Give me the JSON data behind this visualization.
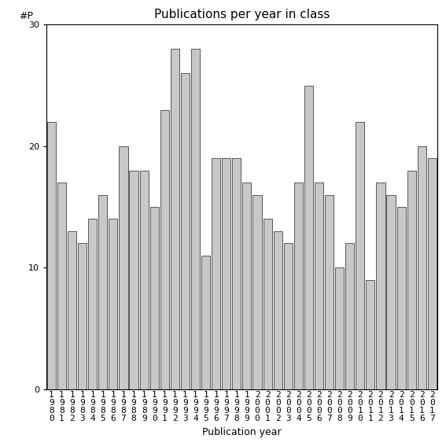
{
  "years": [
    "1980",
    "1981",
    "1982",
    "1983",
    "1984",
    "1985",
    "1986",
    "1987",
    "1988",
    "1989",
    "1990",
    "1991",
    "1992",
    "1993",
    "1994",
    "1995",
    "1996",
    "1997",
    "1998",
    "1999",
    "2000",
    "2001",
    "2002",
    "2003",
    "2004",
    "2005",
    "2006",
    "2007",
    "2008",
    "2009",
    "2010",
    "2011",
    "2012",
    "2013",
    "2014",
    "2015",
    "2016",
    "2017"
  ],
  "values": [
    22,
    17,
    13,
    12,
    14,
    16,
    14,
    20,
    18,
    18,
    15,
    23,
    28,
    26,
    28,
    11,
    19,
    19,
    19,
    17,
    16,
    14,
    13,
    12,
    17,
    25,
    17,
    16,
    10,
    12,
    22,
    9,
    17,
    16,
    15,
    18,
    20,
    19
  ],
  "title": "Publications per year in class",
  "xlabel": "Publication year",
  "ylabel": "#P",
  "ylim": [
    0,
    30
  ],
  "yticks": [
    0,
    10,
    20,
    30
  ],
  "bar_color": "#c8c8c8",
  "bar_edge_color": "#404040",
  "background_color": "#ffffff",
  "title_fontsize": 11,
  "tick_fontsize": 8,
  "label_fontsize": 9
}
